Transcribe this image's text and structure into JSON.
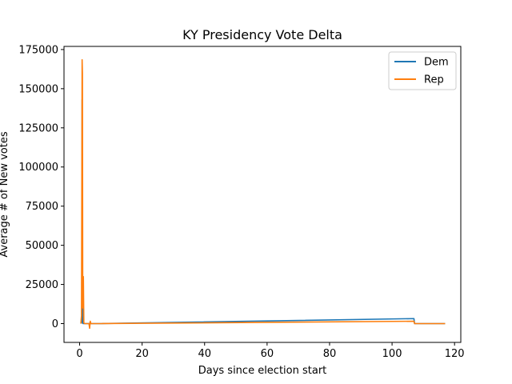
{
  "chart_data": {
    "type": "line",
    "title": "KY Presidency Vote Delta",
    "xlabel": "Days since election start",
    "ylabel": "Average # of New votes",
    "xlim": [
      -5,
      122
    ],
    "ylim": [
      -12000,
      177000
    ],
    "xticks": [
      0,
      20,
      40,
      60,
      80,
      100,
      120
    ],
    "yticks": [
      0,
      25000,
      50000,
      75000,
      100000,
      125000,
      150000,
      175000
    ],
    "grid": false,
    "legend_position": "top-right",
    "series": [
      {
        "name": "Dem",
        "color": "#1f77b4",
        "points": [
          [
            0.6,
            0
          ],
          [
            0.75,
            2000
          ],
          [
            0.8,
            143000
          ],
          [
            0.85,
            8000
          ],
          [
            0.9,
            30000
          ],
          [
            1.0,
            3000
          ],
          [
            1.1,
            0
          ],
          [
            1.3,
            0
          ],
          [
            3.0,
            0
          ],
          [
            3.4,
            500
          ],
          [
            3.6,
            0
          ],
          [
            6,
            0
          ],
          [
            107,
            3200
          ],
          [
            107.2,
            0
          ],
          [
            117,
            0
          ]
        ]
      },
      {
        "name": "Rep",
        "color": "#ff7f0e",
        "points": [
          [
            0.4,
            0
          ],
          [
            0.6,
            5000
          ],
          [
            0.8,
            168500
          ],
          [
            0.9,
            160000
          ],
          [
            1.0,
            10000
          ],
          [
            1.2,
            30000
          ],
          [
            1.35,
            500
          ],
          [
            1.6,
            0
          ],
          [
            3.0,
            0
          ],
          [
            3.2,
            -3000
          ],
          [
            3.4,
            1500
          ],
          [
            3.6,
            0
          ],
          [
            6,
            0
          ],
          [
            107,
            1500
          ],
          [
            107.2,
            0
          ],
          [
            117,
            0
          ]
        ]
      }
    ]
  }
}
